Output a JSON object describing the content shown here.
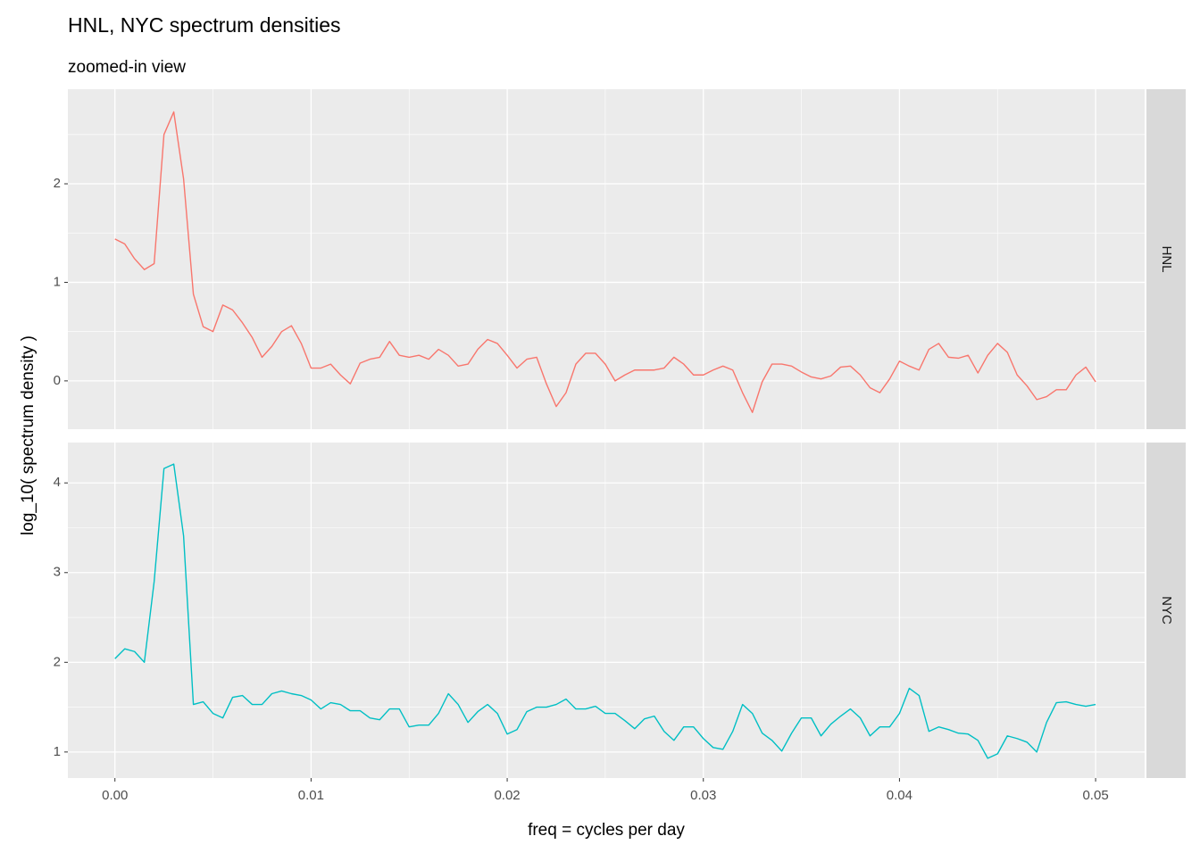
{
  "title": "HNL, NYC spectrum densities",
  "subtitle": "zoomed-in view",
  "y_label": "log_10( spectrum density )",
  "chart_data": [
    {
      "type": "line",
      "x": [
        0,
        0.0005,
        0.001,
        0.0015,
        0.002,
        0.0025,
        0.003,
        0.0035,
        0.004,
        0.0045,
        0.005,
        0.0055,
        0.006,
        0.0065,
        0.007,
        0.0075,
        0.008,
        0.0085,
        0.009,
        0.0095,
        0.01,
        0.0105,
        0.011,
        0.0115,
        0.012,
        0.0125,
        0.013,
        0.0135,
        0.014,
        0.0145,
        0.015,
        0.0155,
        0.016,
        0.0165,
        0.017,
        0.0175,
        0.018,
        0.0185,
        0.019,
        0.0195,
        0.02,
        0.0205,
        0.021,
        0.0215,
        0.022,
        0.0225,
        0.023,
        0.0235,
        0.024,
        0.0245,
        0.025,
        0.0255,
        0.026,
        0.0265,
        0.027,
        0.0275,
        0.028,
        0.0285,
        0.029,
        0.0295,
        0.03,
        0.0305,
        0.031,
        0.0315,
        0.032,
        0.0325,
        0.033,
        0.0335,
        0.034,
        0.0345,
        0.035,
        0.0355,
        0.036,
        0.0365,
        0.037,
        0.0375,
        0.038,
        0.0385,
        0.039,
        0.0395,
        0.04,
        0.0405,
        0.041,
        0.0415,
        0.042,
        0.0425,
        0.043,
        0.0435,
        0.044,
        0.0445,
        0.045,
        0.0455,
        0.046,
        0.0465,
        0.047,
        0.0475,
        0.048,
        0.0485,
        0.049,
        0.0495,
        0.05
      ],
      "series": [
        {
          "name": "HNL",
          "color": "#f8766d",
          "values": [
            1.44,
            1.39,
            1.24,
            1.13,
            1.19,
            2.5,
            2.73,
            2.05,
            0.88,
            0.55,
            0.5,
            0.77,
            0.72,
            0.59,
            0.44,
            0.24,
            0.35,
            0.5,
            0.56,
            0.38,
            0.13,
            0.13,
            0.17,
            0.06,
            -0.03,
            0.18,
            0.22,
            0.24,
            0.4,
            0.26,
            0.24,
            0.26,
            0.22,
            0.32,
            0.26,
            0.15,
            0.17,
            0.32,
            0.42,
            0.38,
            0.26,
            0.13,
            0.22,
            0.24,
            -0.03,
            -0.26,
            -0.12,
            0.17,
            0.28,
            0.28,
            0.17,
            0,
            0.06,
            0.11,
            0.11,
            0.11,
            0.13,
            0.24,
            0.17,
            0.06,
            0.06,
            0.11,
            0.15,
            0.11,
            -0.12,
            -0.32,
            -0.01,
            0.17,
            0.17,
            0.15,
            0.09,
            0.04,
            0.02,
            0.05,
            0.14,
            0.15,
            0.06,
            -0.07,
            -0.12,
            0.02,
            0.2,
            0.15,
            0.11,
            0.32,
            0.38,
            0.24,
            0.23,
            0.26,
            0.08,
            0.26,
            0.38,
            0.29,
            0.06,
            -0.05,
            -0.19,
            -0.16,
            -0.09,
            -0.09,
            0.06,
            0.14,
            -0.01
          ]
        }
      ],
      "xlim": [
        -0.0024,
        0.0525
      ],
      "ylim": [
        -0.49,
        2.96
      ],
      "yticks": [
        0,
        1,
        2
      ],
      "grid": true
    },
    {
      "type": "line",
      "x": [
        0,
        0.0005,
        0.001,
        0.0015,
        0.002,
        0.0025,
        0.003,
        0.0035,
        0.004,
        0.0045,
        0.005,
        0.0055,
        0.006,
        0.0065,
        0.007,
        0.0075,
        0.008,
        0.0085,
        0.009,
        0.0095,
        0.01,
        0.0105,
        0.011,
        0.0115,
        0.012,
        0.0125,
        0.013,
        0.0135,
        0.014,
        0.0145,
        0.015,
        0.0155,
        0.016,
        0.0165,
        0.017,
        0.0175,
        0.018,
        0.0185,
        0.019,
        0.0195,
        0.02,
        0.0205,
        0.021,
        0.0215,
        0.022,
        0.0225,
        0.023,
        0.0235,
        0.024,
        0.0245,
        0.025,
        0.0255,
        0.026,
        0.0265,
        0.027,
        0.0275,
        0.028,
        0.0285,
        0.029,
        0.0295,
        0.03,
        0.0305,
        0.031,
        0.0315,
        0.032,
        0.0325,
        0.033,
        0.0335,
        0.034,
        0.0345,
        0.035,
        0.0355,
        0.036,
        0.0365,
        0.037,
        0.0375,
        0.038,
        0.0385,
        0.039,
        0.0395,
        0.04,
        0.0405,
        0.041,
        0.0415,
        0.042,
        0.0425,
        0.043,
        0.0435,
        0.044,
        0.0445,
        0.045,
        0.0455,
        0.046,
        0.0465,
        0.047,
        0.0475,
        0.048,
        0.0485,
        0.049,
        0.0495,
        0.05
      ],
      "series": [
        {
          "name": "NYC",
          "color": "#00bfc4",
          "values": [
            2.04,
            2.15,
            2.12,
            2.0,
            2.9,
            4.16,
            4.21,
            3.41,
            1.53,
            1.56,
            1.43,
            1.38,
            1.61,
            1.63,
            1.53,
            1.53,
            1.65,
            1.68,
            1.65,
            1.63,
            1.58,
            1.48,
            1.55,
            1.53,
            1.46,
            1.46,
            1.38,
            1.36,
            1.48,
            1.48,
            1.28,
            1.3,
            1.3,
            1.43,
            1.65,
            1.53,
            1.33,
            1.45,
            1.53,
            1.43,
            1.2,
            1.25,
            1.45,
            1.5,
            1.5,
            1.53,
            1.59,
            1.48,
            1.48,
            1.51,
            1.43,
            1.43,
            1.35,
            1.26,
            1.37,
            1.4,
            1.23,
            1.13,
            1.28,
            1.28,
            1.15,
            1.05,
            1.03,
            1.23,
            1.53,
            1.43,
            1.21,
            1.13,
            1.01,
            1.21,
            1.38,
            1.38,
            1.18,
            1.31,
            1.4,
            1.48,
            1.38,
            1.18,
            1.28,
            1.28,
            1.43,
            1.71,
            1.63,
            1.23,
            1.28,
            1.25,
            1.21,
            1.2,
            1.13,
            0.93,
            0.98,
            1.18,
            1.15,
            1.11,
            1.0,
            1.33,
            1.55,
            1.56,
            1.53,
            1.51,
            1.53
          ]
        }
      ],
      "xlim": [
        -0.0024,
        0.0525
      ],
      "ylim": [
        0.71,
        4.45
      ],
      "xticks": [
        {
          "value": 0,
          "label": "0.00"
        },
        0.01,
        0.02,
        0.03,
        0.04,
        0.05
      ],
      "yticks": [
        1,
        2,
        3,
        4
      ],
      "x_label": "freq = cycles per day",
      "grid": true
    }
  ]
}
